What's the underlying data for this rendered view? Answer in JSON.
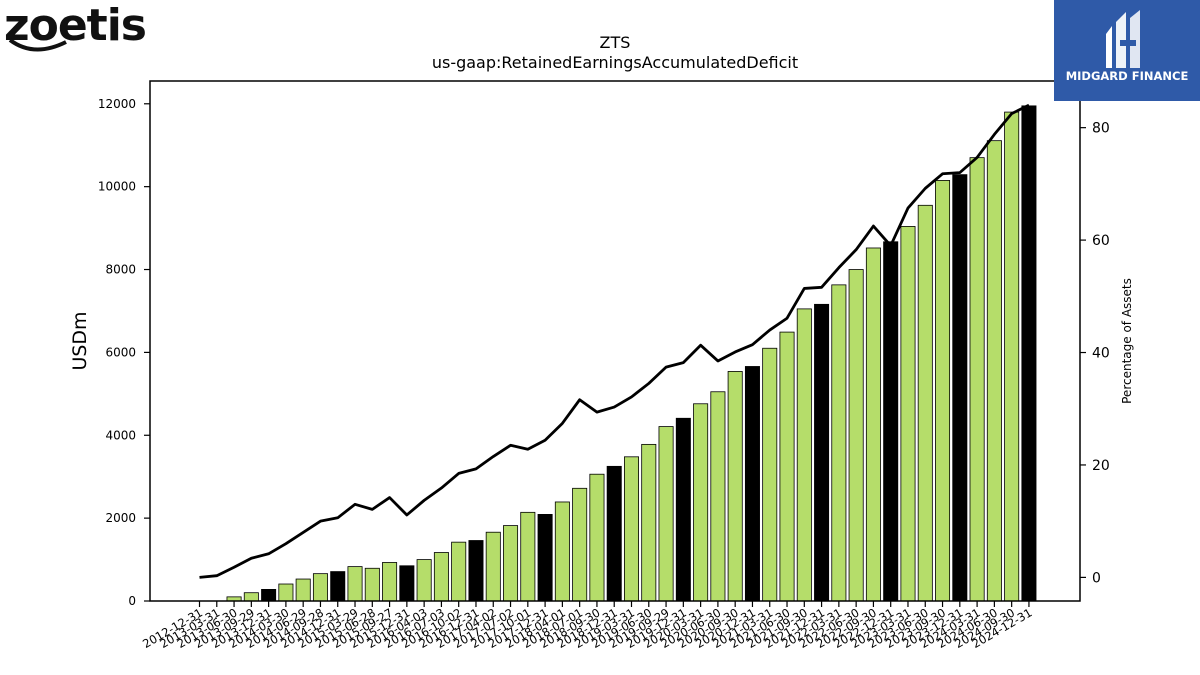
{
  "logos": {
    "left_text": "zoetis",
    "right_text": "MIDGARD FINANCE"
  },
  "colors": {
    "bar": "#b5dd6a",
    "bar_highlight": "#000000",
    "line": "#000000"
  },
  "chart_data": {
    "type": "bar",
    "title": "ZTS",
    "subtitle": "us-gaap:RetainedEarningsAccumulatedDeficit",
    "ylabel": "USDm",
    "y2label": "Percentage of Assets",
    "ylim": [
      0,
      12550
    ],
    "y2lim": [
      -4.2,
      88.3
    ],
    "yticks": [
      0,
      2000,
      4000,
      6000,
      8000,
      10000,
      12000
    ],
    "y2ticks": [
      0,
      20,
      40,
      60,
      80
    ],
    "categories": [
      "2012-12-31",
      "2013-03-31",
      "2013-06-30",
      "2013-09-29",
      "2013-12-31",
      "2014-03-30",
      "2014-06-29",
      "2014-09-28",
      "2014-12-31",
      "2015-03-29",
      "2015-06-28",
      "2015-09-27",
      "2015-12-31",
      "2016-04-03",
      "2016-07-03",
      "2016-10-02",
      "2016-12-31",
      "2017-04-02",
      "2017-07-02",
      "2017-10-01",
      "2017-12-31",
      "2018-04-01",
      "2018-07-01",
      "2018-09-30",
      "2018-12-31",
      "2019-03-31",
      "2019-06-30",
      "2019-09-29",
      "2019-12-31",
      "2020-03-31",
      "2020-06-30",
      "2020-09-30",
      "2020-12-31",
      "2021-03-31",
      "2021-06-30",
      "2021-09-30",
      "2021-12-31",
      "2022-03-31",
      "2022-06-30",
      "2022-09-30",
      "2022-12-31",
      "2023-03-31",
      "2023-06-30",
      "2023-09-30",
      "2023-12-31",
      "2024-03-31",
      "2024-06-30",
      "2024-09-30",
      "2024-12-31"
    ],
    "series": [
      {
        "values": [
          0,
          0,
          100,
          200,
          280,
          410,
          530,
          660,
          710,
          830,
          790,
          930,
          850,
          1000,
          1170,
          1420,
          1460,
          1660,
          1820,
          2140,
          2090,
          2390,
          2720,
          3060,
          3250,
          3480,
          3780,
          4210,
          4410,
          4760,
          5050,
          5540,
          5660,
          6100,
          6490,
          7050,
          7160,
          7630,
          8000,
          8520,
          8670,
          9040,
          9550,
          10150,
          10290,
          10700,
          11110,
          11800,
          11950
        ]
      },
      {
        "values": [
          0,
          0.3,
          1.8,
          3.4,
          4.2,
          6.0,
          8.0,
          10.0,
          10.6,
          13.0,
          12.1,
          14.2,
          11.1,
          13.7,
          15.9,
          18.5,
          19.3,
          21.5,
          23.5,
          22.8,
          24.4,
          27.4,
          31.6,
          29.4,
          30.3,
          32.1,
          34.5,
          37.4,
          38.2,
          41.3,
          38.5,
          40.1,
          41.4,
          44.0,
          46.1,
          51.4,
          51.6,
          55.1,
          58.3,
          62.5,
          59.0,
          65.7,
          69.2,
          71.8,
          72.0,
          74.7,
          78.8,
          82.5,
          84.0
        ]
      }
    ]
  }
}
